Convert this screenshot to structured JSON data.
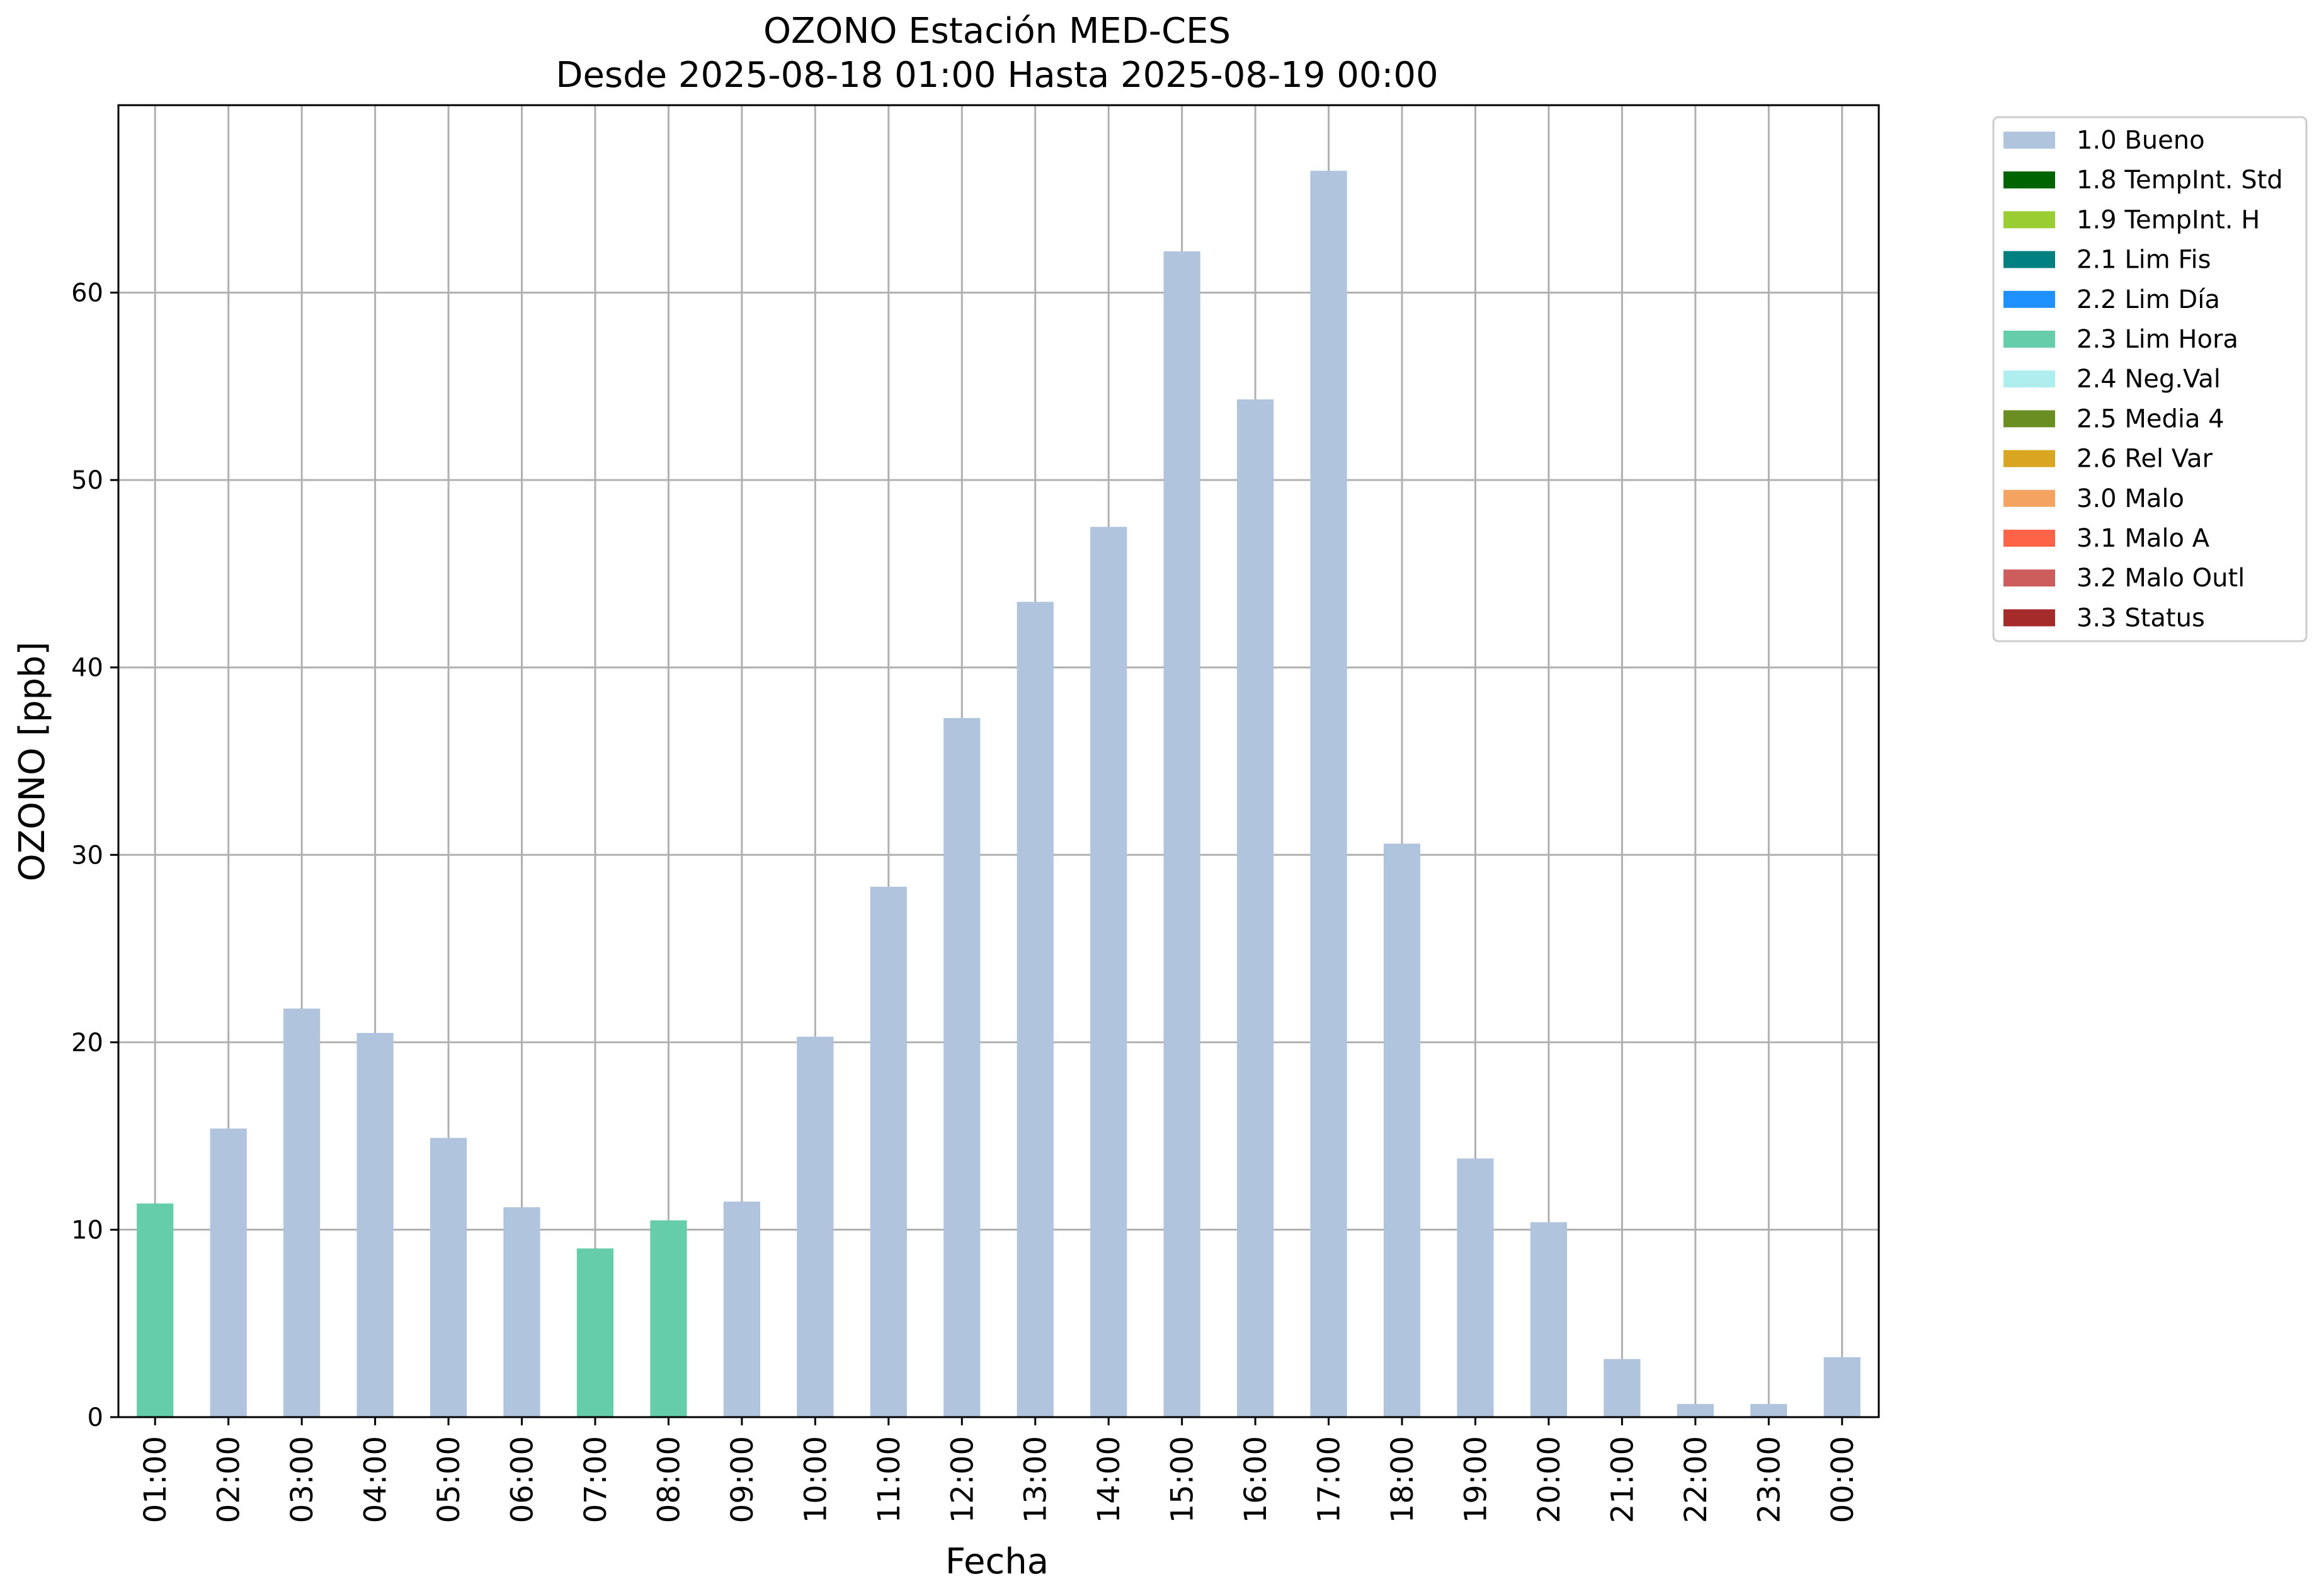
{
  "chart_data": {
    "type": "bar",
    "title": "OZONO Estación MED-CES",
    "subtitle": "Desde 2025-08-18 01:00 Hasta 2025-08-19 00:00",
    "xlabel": "Fecha",
    "ylabel": "OZONO [ppb]",
    "ylim": [
      0,
      70
    ],
    "yticks": [
      0,
      10,
      20,
      30,
      40,
      50,
      60
    ],
    "grid": true,
    "legend_placement": "outside-top-right",
    "categories": [
      "01:00",
      "02:00",
      "03:00",
      "04:00",
      "05:00",
      "06:00",
      "07:00",
      "08:00",
      "09:00",
      "10:00",
      "11:00",
      "12:00",
      "13:00",
      "14:00",
      "15:00",
      "16:00",
      "17:00",
      "18:00",
      "19:00",
      "20:00",
      "21:00",
      "22:00",
      "23:00",
      "00:00"
    ],
    "values": [
      11.4,
      15.4,
      21.8,
      20.5,
      14.9,
      11.2,
      9.0,
      10.5,
      11.5,
      20.3,
      28.3,
      37.3,
      43.5,
      47.5,
      62.2,
      54.3,
      66.5,
      30.6,
      13.8,
      10.4,
      3.1,
      0.7,
      0.7,
      3.2
    ],
    "flags": [
      "2.3 Lim Hora",
      "1.0 Bueno",
      "1.0 Bueno",
      "1.0 Bueno",
      "1.0 Bueno",
      "1.0 Bueno",
      "2.3 Lim Hora",
      "2.3 Lim Hora",
      "1.0 Bueno",
      "1.0 Bueno",
      "1.0 Bueno",
      "1.0 Bueno",
      "1.0 Bueno",
      "1.0 Bueno",
      "1.0 Bueno",
      "1.0 Bueno",
      "1.0 Bueno",
      "1.0 Bueno",
      "1.0 Bueno",
      "1.0 Bueno",
      "1.0 Bueno",
      "1.0 Bueno",
      "1.0 Bueno",
      "1.0 Bueno"
    ],
    "legend": [
      {
        "label": "1.0 Bueno",
        "color": "#b0c4de"
      },
      {
        "label": "1.8 TempInt. Std",
        "color": "#006400"
      },
      {
        "label": "1.9 TempInt. H",
        "color": "#9acd32"
      },
      {
        "label": "2.1 Lim Fis",
        "color": "#008080"
      },
      {
        "label": "2.2 Lim Día",
        "color": "#1e90ff"
      },
      {
        "label": "2.3 Lim Hora",
        "color": "#66cdaa"
      },
      {
        "label": "2.4 Neg.Val",
        "color": "#afeeee"
      },
      {
        "label": "2.5 Media 4",
        "color": "#6b8e23"
      },
      {
        "label": "2.6 Rel Var",
        "color": "#daa520"
      },
      {
        "label": "3.0 Malo",
        "color": "#f4a460"
      },
      {
        "label": "3.1 Malo A",
        "color": "#ff6347"
      },
      {
        "label": "3.2 Malo Outl",
        "color": "#cd5c5c"
      },
      {
        "label": "3.3 Status",
        "color": "#a52a2a"
      }
    ]
  }
}
